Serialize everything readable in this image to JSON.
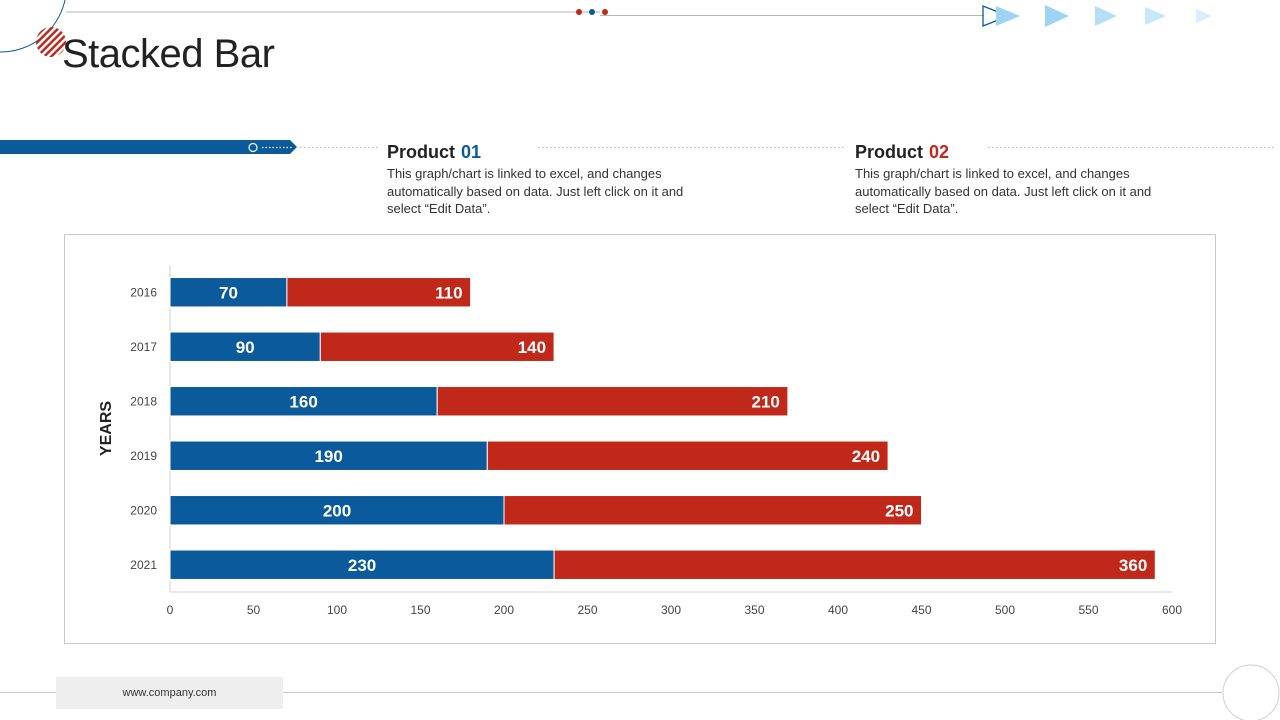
{
  "title": "Stacked Bar",
  "products": [
    {
      "label": "Product",
      "number": "01",
      "color": "#0b5a9c",
      "description": "This graph/chart is linked to excel, and changes automatically based on data. Just left click on it and select “Edit Data”."
    },
    {
      "label": "Product",
      "number": "02",
      "color": "#c0281a",
      "description": "This graph/chart is linked to excel, and changes automatically based on data. Just left click on it and select “Edit Data”."
    }
  ],
  "footer": {
    "website": "www.company.com"
  },
  "colors": {
    "blue": "#0b5a9c",
    "red": "#c0281a",
    "accent_light": "#9fd3f2"
  },
  "chart_data": {
    "type": "bar",
    "orientation": "horizontal",
    "stacked": true,
    "categories": [
      "2016",
      "2017",
      "2018",
      "2019",
      "2020",
      "2021"
    ],
    "series": [
      {
        "name": "Product 01",
        "color": "#0b5a9c",
        "values": [
          70,
          90,
          160,
          190,
          200,
          230
        ]
      },
      {
        "name": "Product 02",
        "color": "#c0281a",
        "values": [
          110,
          140,
          210,
          240,
          250,
          360
        ]
      }
    ],
    "ylabel": "YEARS",
    "xlabel": "",
    "xlim": [
      0,
      600
    ],
    "xticks": [
      0,
      50,
      100,
      150,
      200,
      250,
      300,
      350,
      400,
      450,
      500,
      550,
      600
    ],
    "legend": "none",
    "grid": false
  }
}
